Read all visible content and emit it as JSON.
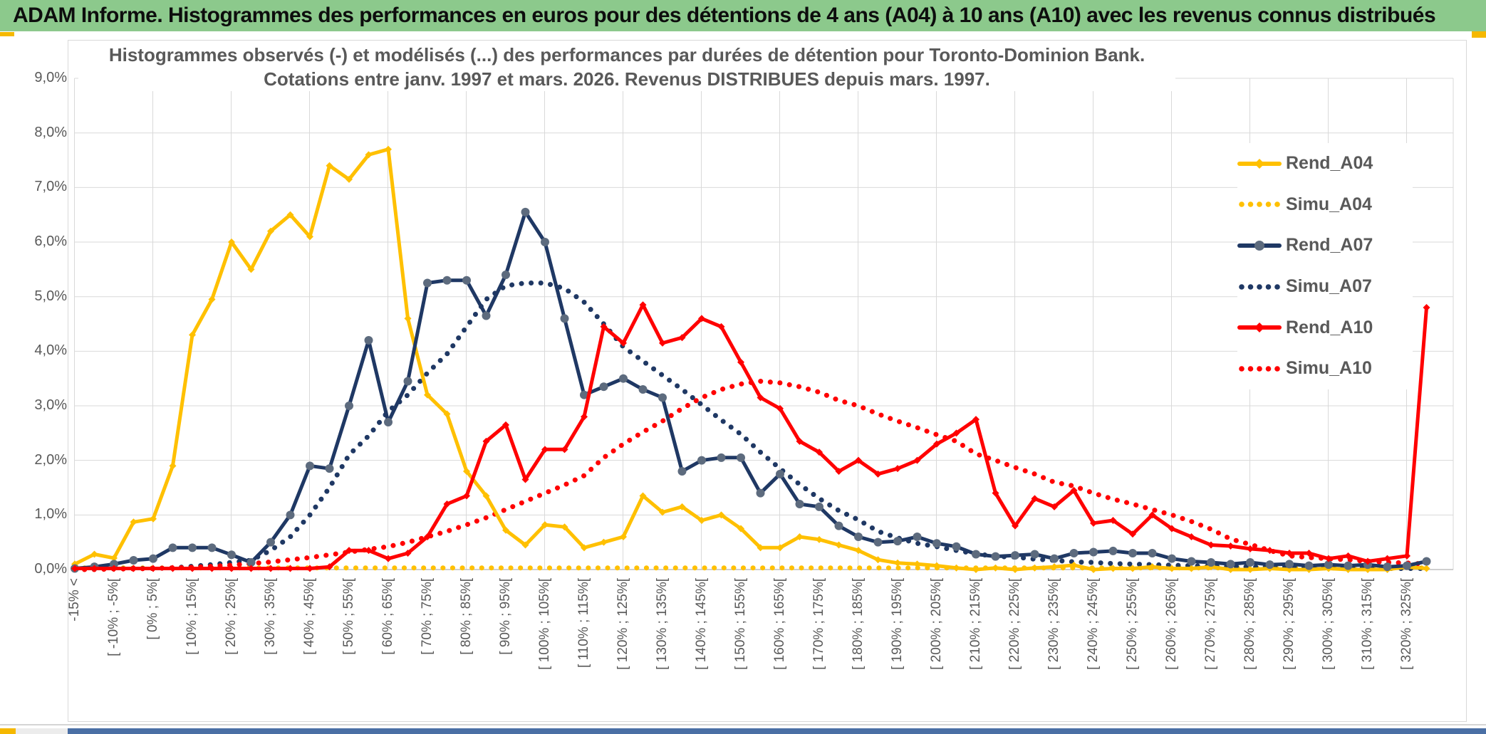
{
  "header": {
    "title": "ADAM Informe. Histogrammes des performances en euros pour des détentions de 4 ans (A04) à 10 ans (A10) avec les revenus connus distribués"
  },
  "chart": {
    "title_line1": "Histogrammes observés (-) et modélisés (...) des performances par durées de détention pour Toronto-Dominion Bank.",
    "title_line2": "Cotations entre janv. 1997 et mars. 2026. Revenus DISTRIBUES depuis mars. 1997.",
    "y_axis": {
      "labels": [
        "9,0%",
        "8,0%",
        "7,0%",
        "6,0%",
        "5,0%",
        "4,0%",
        "3,0%",
        "2,0%",
        "1,0%",
        "0,0%"
      ]
    },
    "x_axis": {
      "tick_labels": [
        "-15% <",
        "[ -10% ; -5%[",
        "[ 0% ; 5%[",
        "[ 10% ; 15%[",
        "[ 20% ; 25%[",
        "[ 30% ; 35%[",
        "[ 40% ; 45%[",
        "[ 50% ; 55%[",
        "[ 60% ; 65%[",
        "[ 70% ; 75%[",
        "[ 80% ; 85%[",
        "[ 90% ; 95%[",
        "[ 100% ; 105%[",
        "[ 110% ; 115%[",
        "[ 120% ; 125%[",
        "[ 130% ; 135%[",
        "[ 140% ; 145%[",
        "[ 150% ; 155%[",
        "[ 160% ; 165%[",
        "[ 170% ; 175%[",
        "[ 180% ; 185%[",
        "[ 190% ; 195%[",
        "[ 200% ; 205%[",
        "[ 210% ; 215%[",
        "[ 220% ; 225%[",
        "[ 230% ; 235%[",
        "[ 240% ; 245%[",
        "[ 250% ; 255%[",
        "[ 260% ; 265%[",
        "[ 270% ; 275%[",
        "[ 280% ; 285%[",
        "[ 290% ; 295%[",
        "[ 300% ; 305%[",
        "[ 310% ; 315%[",
        "[ 320% ; 325%["
      ]
    },
    "colors": {
      "accent_yellow": "#F5B800",
      "title_green": "#8CC98C",
      "axis_text": "#595959",
      "gridline": "#D9D9D9",
      "bottom_blue": "#4A6FA5"
    }
  },
  "chart_data": {
    "type": "line",
    "n_bins": 70,
    "tick_every": 2,
    "ylim": [
      0,
      9
    ],
    "grid": "both",
    "legend_position": "upper-right-overlay",
    "series": [
      {
        "name": "Rend_A04",
        "color": "#FFC000",
        "style": "solid",
        "marker": "diamond",
        "values": [
          0.1,
          0.28,
          0.21,
          0.87,
          0.93,
          1.9,
          4.3,
          4.95,
          6.0,
          5.5,
          6.2,
          6.5,
          6.1,
          7.4,
          7.15,
          7.6,
          7.7,
          4.6,
          3.2,
          2.85,
          1.8,
          1.35,
          0.72,
          0.45,
          0.82,
          0.78,
          0.4,
          0.5,
          0.6,
          1.35,
          1.05,
          1.15,
          0.9,
          1.0,
          0.75,
          0.4,
          0.4,
          0.6,
          0.55,
          0.45,
          0.35,
          0.18,
          0.12,
          0.1,
          0.07,
          0.03,
          0.0,
          0.03,
          0.0,
          0.03,
          0.05,
          0.08,
          0.0,
          0.02,
          0.02,
          0.05,
          0.02,
          0.02,
          0.05,
          0.0,
          0.0,
          0.02,
          0.0,
          0.0,
          0.02,
          0.0,
          0.0,
          0.0,
          0.05,
          0.02
        ]
      },
      {
        "name": "Simu_A04",
        "color": "#FFC000",
        "style": "dotted",
        "marker": "none",
        "values": [
          0.03,
          0.03,
          0.03,
          0.03,
          0.03,
          0.03,
          0.03,
          0.03,
          0.03,
          0.03,
          0.03,
          0.03,
          0.03,
          0.03,
          0.03,
          0.03,
          0.03,
          0.03,
          0.03,
          0.03,
          0.03,
          0.03,
          0.03,
          0.03,
          0.03,
          0.03,
          0.03,
          0.03,
          0.03,
          0.03,
          0.03,
          0.03,
          0.03,
          0.03,
          0.03,
          0.03,
          0.03,
          0.03,
          0.03,
          0.03,
          0.03,
          0.03,
          0.03,
          0.03,
          0.03,
          0.03,
          0.03,
          0.03,
          0.03,
          0.03,
          0.03,
          0.03,
          0.03,
          0.03,
          0.03,
          0.03,
          0.03,
          0.03,
          0.03,
          0.03,
          0.03,
          0.03,
          0.03,
          0.03,
          0.03,
          0.03,
          0.03,
          0.03,
          0.03,
          0.03
        ]
      },
      {
        "name": "Rend_A07",
        "color": "#1F3864",
        "style": "solid",
        "marker": "circle",
        "marker_color": "#5D6B7E",
        "values": [
          0.02,
          0.05,
          0.1,
          0.17,
          0.2,
          0.4,
          0.4,
          0.4,
          0.27,
          0.13,
          0.5,
          1.0,
          1.9,
          1.85,
          3.0,
          4.2,
          2.7,
          3.45,
          5.25,
          5.3,
          5.3,
          4.65,
          5.4,
          6.55,
          6.0,
          4.6,
          3.2,
          3.35,
          3.5,
          3.3,
          3.15,
          1.8,
          2.0,
          2.05,
          2.05,
          1.4,
          1.75,
          1.2,
          1.15,
          0.8,
          0.6,
          0.5,
          0.52,
          0.6,
          0.48,
          0.42,
          0.28,
          0.24,
          0.26,
          0.28,
          0.2,
          0.3,
          0.32,
          0.34,
          0.3,
          0.3,
          0.2,
          0.15,
          0.13,
          0.1,
          0.13,
          0.09,
          0.1,
          0.07,
          0.09,
          0.07,
          0.09,
          0.05,
          0.07,
          0.15
        ]
      },
      {
        "name": "Simu_A07",
        "color": "#1F3864",
        "style": "dotted",
        "marker": "none",
        "values": [
          0.0,
          0.01,
          0.01,
          0.02,
          0.02,
          0.03,
          0.06,
          0.09,
          0.13,
          0.17,
          0.35,
          0.6,
          1.0,
          1.5,
          2.1,
          2.45,
          2.9,
          3.2,
          3.6,
          3.95,
          4.45,
          4.95,
          5.2,
          5.25,
          5.25,
          5.15,
          4.9,
          4.5,
          4.08,
          3.82,
          3.56,
          3.3,
          3.02,
          2.74,
          2.48,
          2.15,
          1.85,
          1.56,
          1.3,
          1.08,
          0.91,
          0.7,
          0.58,
          0.48,
          0.42,
          0.35,
          0.29,
          0.24,
          0.23,
          0.19,
          0.17,
          0.14,
          0.13,
          0.11,
          0.1,
          0.09,
          0.08,
          0.07,
          0.06,
          0.06,
          0.05,
          0.05,
          0.04,
          0.04,
          0.03,
          0.03,
          0.03,
          0.02,
          0.02,
          0.02
        ]
      },
      {
        "name": "Rend_A10",
        "color": "#FF0000",
        "style": "solid",
        "marker": "diamond",
        "values": [
          0.02,
          0.02,
          0.02,
          0.02,
          0.02,
          0.02,
          0.02,
          0.02,
          0.02,
          0.02,
          0.02,
          0.02,
          0.02,
          0.05,
          0.35,
          0.35,
          0.2,
          0.3,
          0.6,
          1.2,
          1.35,
          2.35,
          2.65,
          1.65,
          2.2,
          2.2,
          2.8,
          4.45,
          4.15,
          4.85,
          4.15,
          4.25,
          4.6,
          4.45,
          3.8,
          3.15,
          2.95,
          2.35,
          2.15,
          1.8,
          2.0,
          1.75,
          1.85,
          2.0,
          2.3,
          2.5,
          2.75,
          1.4,
          0.8,
          1.3,
          1.15,
          1.45,
          0.85,
          0.9,
          0.65,
          1.0,
          0.75,
          0.6,
          0.45,
          0.43,
          0.38,
          0.35,
          0.3,
          0.3,
          0.2,
          0.25,
          0.15,
          0.2,
          0.25,
          4.8
        ]
      },
      {
        "name": "Simu_A10",
        "color": "#FF0000",
        "style": "dotted",
        "marker": "none",
        "values": [
          0.0,
          0.0,
          0.01,
          0.01,
          0.02,
          0.03,
          0.04,
          0.06,
          0.08,
          0.11,
          0.14,
          0.18,
          0.22,
          0.27,
          0.32,
          0.37,
          0.42,
          0.5,
          0.6,
          0.7,
          0.82,
          0.95,
          1.1,
          1.25,
          1.4,
          1.55,
          1.72,
          2.05,
          2.3,
          2.52,
          2.72,
          2.95,
          3.15,
          3.3,
          3.4,
          3.45,
          3.42,
          3.35,
          3.25,
          3.1,
          3.0,
          2.85,
          2.72,
          2.6,
          2.47,
          2.35,
          2.12,
          2.0,
          1.87,
          1.75,
          1.6,
          1.53,
          1.4,
          1.29,
          1.2,
          1.1,
          1.0,
          0.88,
          0.74,
          0.56,
          0.46,
          0.35,
          0.25,
          0.22,
          0.2,
          0.18,
          0.15,
          0.13,
          0.12,
          0.1
        ]
      }
    ]
  }
}
